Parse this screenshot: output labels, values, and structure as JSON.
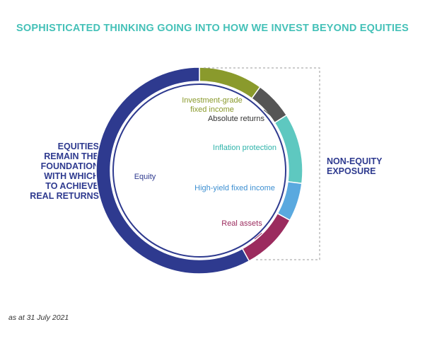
{
  "title": "SOPHISTICATED THINKING GOING INTO HOW WE INVEST BEYOND EQUITIES",
  "left_caption_lines": [
    "EQUITIES",
    "REMAIN THE",
    "FOUNDATION",
    "WITH WHICH",
    "TO ACHIEVE",
    "REAL RETURNS"
  ],
  "right_caption_lines": [
    "NON-EQUITY",
    "EXPOSURE"
  ],
  "footnote": "as at 31 July 2021",
  "colors": {
    "title": "#45c1b8",
    "caption": "#2e3a8f",
    "ring_line": "#2e3a8f",
    "bracket": "#999999"
  },
  "chart_data": {
    "type": "pie",
    "style": "donut",
    "title": "",
    "slices": [
      {
        "label": "Investment-grade\nfixed income",
        "value": 10,
        "color": "#8a9a2c"
      },
      {
        "label": "Absolute returns",
        "value": 6,
        "color": "#555555"
      },
      {
        "label": "Inflation protection",
        "value": 11,
        "color": "#5ec8c0"
      },
      {
        "label": "High-yield fixed income",
        "value": 6,
        "color": "#5aa9df"
      },
      {
        "label": "Real assets",
        "value": 9,
        "color": "#9b2b5e"
      },
      {
        "label": "Equity",
        "value": 58,
        "color": "#2e3a8f"
      }
    ]
  }
}
